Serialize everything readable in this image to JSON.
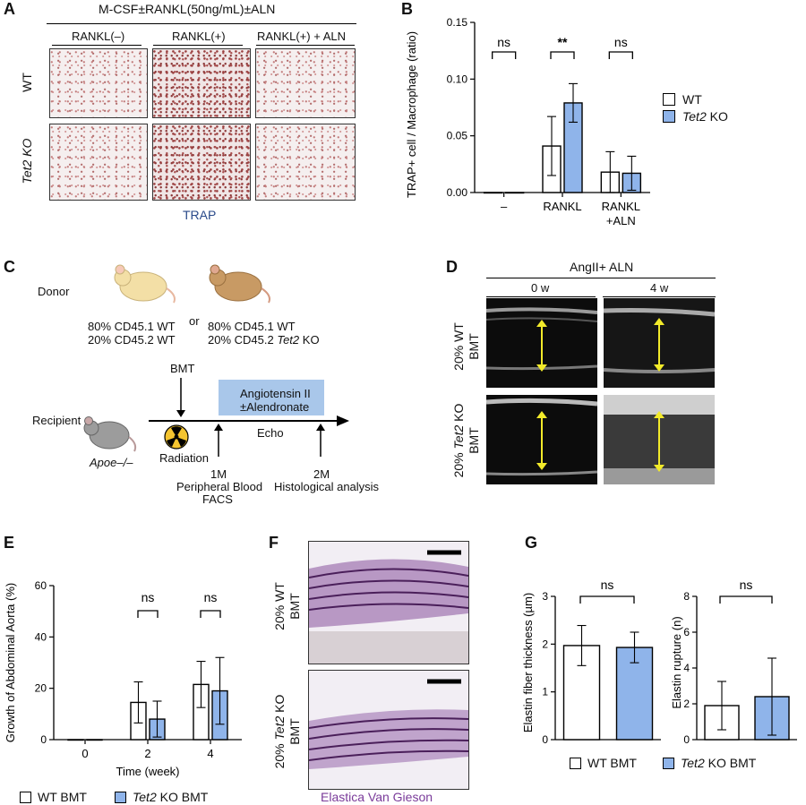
{
  "panelA": {
    "letter": "A",
    "header": "M-CSF±RANKL(50ng/mL)±ALN",
    "columns": [
      "RANKL(–)",
      "RANKL(+)",
      "RANKL(+) + ALN"
    ],
    "rows": [
      "WT",
      "Tet2 KO"
    ],
    "stain_label": "TRAP"
  },
  "panelB": {
    "letter": "B",
    "legend": [
      "WT",
      "Tet2 KO"
    ],
    "significance": [
      "ns",
      "**",
      "ns"
    ]
  },
  "panelC": {
    "letter": "C",
    "donor_label": "Donor",
    "donor1_line1": "80% CD45.1 WT",
    "donor1_line2": "20% CD45.2 WT",
    "or_label": "or",
    "donor2_line1": "80% CD45.1 WT",
    "donor2_line2": "20% CD45.2 Tet2 KO",
    "recipient_label": "Recipient",
    "recipient_genotype": "Apoe–/–",
    "bmt_label": "BMT",
    "radiation_label": "Radiation",
    "treatment_line1": "Angiotensin II",
    "treatment_line2": "±Alendronate",
    "echo_label": "Echo",
    "m1_label": "1M",
    "m1_desc1": "Peripheral Blood",
    "m1_desc2": "FACS",
    "m2_label": "2M",
    "m2_desc": "Histological analysis"
  },
  "panelD": {
    "letter": "D",
    "header": "AngII+ ALN",
    "columns": [
      "0 w",
      "4 w"
    ],
    "row1_line1": "20% WT",
    "row1_line2": "BMT",
    "row2_line1": "20% Tet2 KO",
    "row2_line2": "BMT"
  },
  "panelE": {
    "letter": "E",
    "legend": [
      "WT BMT",
      "Tet2 KO BMT"
    ],
    "significance": [
      "ns",
      "ns"
    ]
  },
  "panelF": {
    "letter": "F",
    "row1_line1": "20% WT",
    "row1_line2": "BMT",
    "row2_line1": "20% Tet2 KO",
    "row2_line2": "BMT",
    "stain_label": "Elastica Van Gieson"
  },
  "panelG": {
    "letter": "G",
    "significance": [
      "ns",
      "ns"
    ],
    "legend": [
      "WT BMT",
      "Tet2 KO BMT"
    ]
  },
  "colors": {
    "wt": "#ffffff",
    "ko": "#8fb4ea",
    "arrow": "#f2ea2a",
    "stain": "#7a3b9a",
    "trap": "#2a4a8a"
  },
  "chart_data": [
    {
      "id": "B",
      "type": "bar",
      "categories": [
        "–",
        "RANKL",
        "RANKL +ALN"
      ],
      "series": [
        {
          "name": "WT",
          "values": [
            0.0,
            0.041,
            0.018
          ],
          "sd": [
            0.0,
            0.026,
            0.018
          ]
        },
        {
          "name": "Tet2 KO",
          "values": [
            0.0,
            0.079,
            0.017
          ],
          "sd": [
            0.0,
            0.017,
            0.015
          ]
        }
      ],
      "xlabel": "",
      "ylabel": "TRAP+ cell / Macrophage (ratio)",
      "ylim": [
        0,
        0.15
      ],
      "yticks": [
        "0.00",
        "0.05",
        "0.10",
        "0.15"
      ]
    },
    {
      "id": "E",
      "type": "bar",
      "categories": [
        "0",
        "2",
        "4"
      ],
      "series": [
        {
          "name": "WT BMT",
          "values": [
            0,
            14.5,
            21.5
          ],
          "sd": [
            0,
            8,
            9
          ]
        },
        {
          "name": "Tet2 KO BMT",
          "values": [
            0,
            8,
            19
          ],
          "sd": [
            0,
            7,
            13
          ]
        }
      ],
      "xlabel": "Time (week)",
      "ylabel": "Growth of Abdominal Aorta (%)",
      "ylim": [
        0,
        60
      ],
      "yticks": [
        "0",
        "20",
        "40",
        "60"
      ]
    },
    {
      "id": "G1",
      "type": "bar",
      "categories": [
        "WT BMT",
        "Tet2 KO BMT"
      ],
      "series": [
        {
          "name": "",
          "values": [
            1.97,
            1.93
          ],
          "sd": [
            0.42,
            0.32
          ]
        }
      ],
      "ylabel": "Elastin fiber thickness (µm)",
      "ylim": [
        0,
        3
      ],
      "yticks": [
        "0",
        "1",
        "2",
        "3"
      ]
    },
    {
      "id": "G2",
      "type": "bar",
      "categories": [
        "WT BMT",
        "Tet2 KO BMT"
      ],
      "series": [
        {
          "name": "",
          "values": [
            1.9,
            2.4
          ],
          "sd": [
            1.35,
            2.15
          ]
        }
      ],
      "ylabel": "Elastin rupture (n)",
      "ylim": [
        0,
        8
      ],
      "yticks": [
        "0",
        "2",
        "4",
        "6",
        "8"
      ]
    }
  ]
}
